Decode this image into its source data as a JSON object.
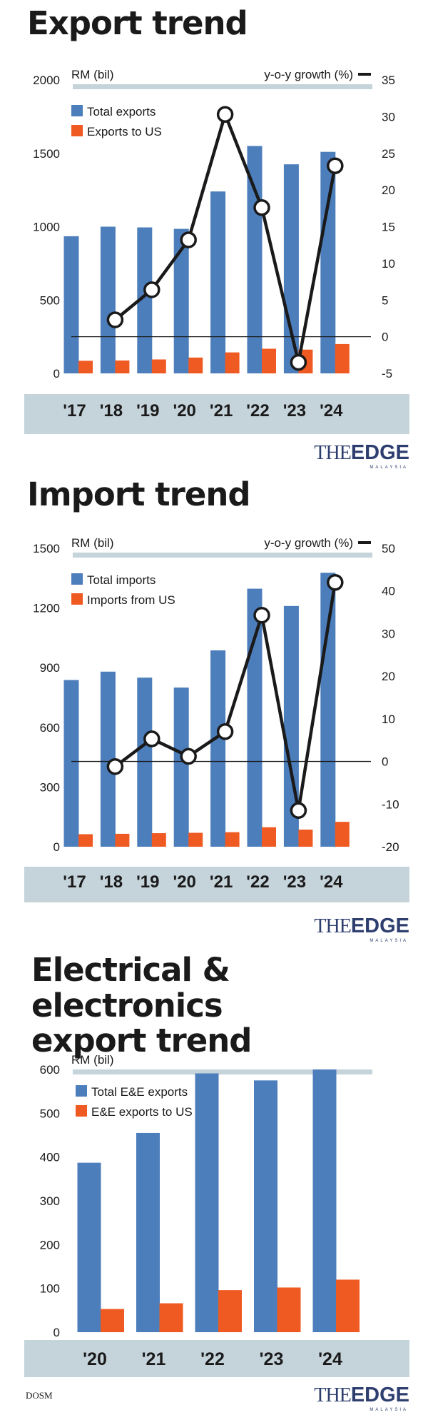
{
  "brand": {
    "prefix": "THE",
    "name": "EDGE",
    "sub": "MALAYSIA"
  },
  "source": "DOSM",
  "colors": {
    "bar_total": "#4d7ebc",
    "bar_us": "#ef5a22",
    "growth_line": "#1a1a1a",
    "axis_band": "#c5d3db"
  },
  "chart_data": [
    {
      "title": "Export trend",
      "type": "bar",
      "overlay": "line",
      "ylabel": "RM (bil)",
      "y2label": "y-o-y growth (%)",
      "categories": [
        "'17",
        "'18",
        "'19",
        "'20",
        "'21",
        "'22",
        "'23",
        "'24"
      ],
      "ylim": [
        0,
        2000
      ],
      "yticks": [
        0,
        500,
        1000,
        1500,
        2000
      ],
      "y2lim": [
        -5,
        35
      ],
      "y2ticks": [
        -5,
        0,
        5,
        10,
        15,
        20,
        25,
        30,
        35
      ],
      "series": [
        {
          "name": "Total exports",
          "values": [
            935,
            1000,
            995,
            985,
            1240,
            1550,
            1425,
            1510
          ]
        },
        {
          "name": "Exports to US",
          "values": [
            86,
            88,
            95,
            108,
            143,
            168,
            162,
            200
          ]
        }
      ],
      "growth": {
        "values": [
          null,
          2.3,
          6.4,
          13.2,
          30.3,
          17.6,
          -3.5,
          23.3
        ]
      }
    },
    {
      "title": "Import trend",
      "type": "bar",
      "overlay": "line",
      "ylabel": "RM (bil)",
      "y2label": "y-o-y growth (%)",
      "categories": [
        "'17",
        "'18",
        "'19",
        "'20",
        "'21",
        "'22",
        "'23",
        "'24"
      ],
      "ylim": [
        0,
        1500
      ],
      "yticks": [
        0,
        300,
        600,
        900,
        1200,
        1500
      ],
      "y2lim": [
        -20,
        50
      ],
      "y2ticks": [
        -20,
        -10,
        0,
        10,
        20,
        30,
        40,
        50
      ],
      "series": [
        {
          "name": "Total imports",
          "values": [
            838,
            880,
            850,
            800,
            987,
            1297,
            1210,
            1377
          ]
        },
        {
          "name": "Imports from US",
          "values": [
            63,
            65,
            68,
            70,
            73,
            98,
            86,
            125
          ]
        }
      ],
      "growth": {
        "values": [
          null,
          -1.2,
          5.3,
          1.2,
          7.0,
          34.3,
          -11.5,
          42.0
        ]
      }
    },
    {
      "title_lines": [
        "Electrical & electronics",
        "export trend"
      ],
      "type": "bar",
      "ylabel": "RM (bil)",
      "categories": [
        "'20",
        "'21",
        "'22",
        "'23",
        "'24"
      ],
      "ylim": [
        0,
        600
      ],
      "yticks": [
        0,
        100,
        200,
        300,
        400,
        500,
        600
      ],
      "series": [
        {
          "name": "Total E&E exports",
          "values": [
            387,
            455,
            591,
            575,
            600
          ]
        },
        {
          "name": "E&E exports to US",
          "values": [
            53,
            66,
            96,
            102,
            120
          ]
        }
      ]
    }
  ]
}
